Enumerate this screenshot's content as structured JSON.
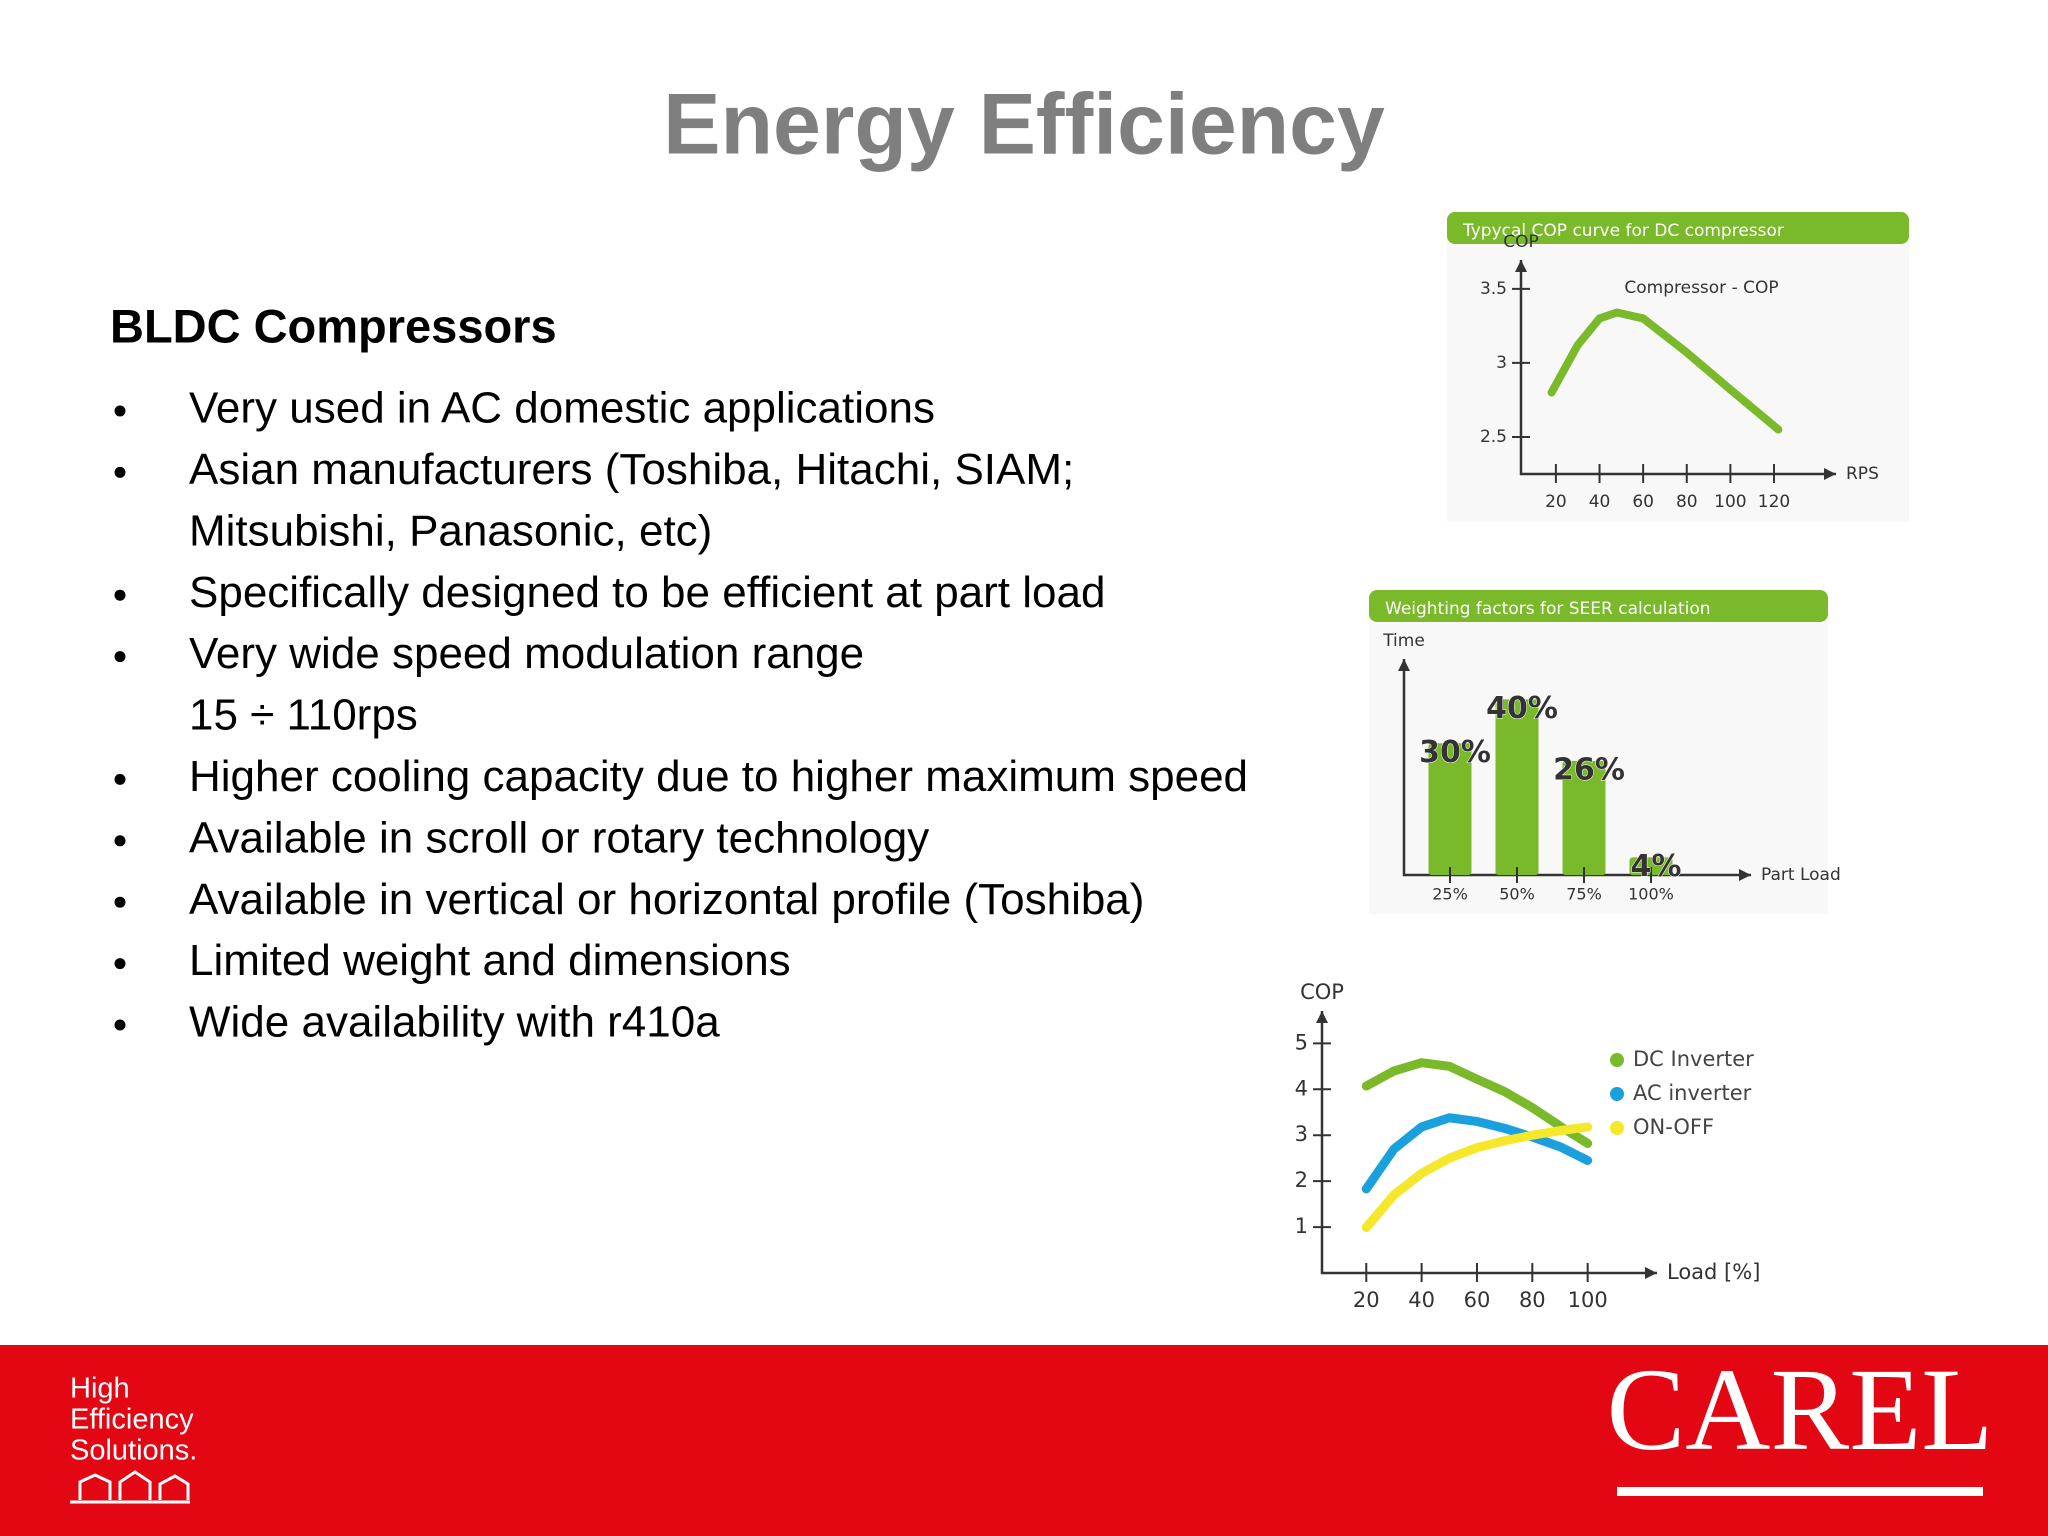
{
  "title": "Energy Efficiency",
  "heading": "BLDC Compressors",
  "bullets": [
    [
      "Very used in AC domestic applications"
    ],
    [
      "Asian manufacturers (Toshiba, Hitachi, SIAM;",
      "Mitsubishi, Panasonic, etc)"
    ],
    [
      "Specifically designed to be efficient at part load"
    ],
    [
      "Very wide speed modulation range",
      "15 ÷ 110rps"
    ],
    [
      "Higher cooling capacity due to higher maximum speed"
    ],
    [
      "Available in scroll or rotary technology"
    ],
    [
      "Available in vertical or horizontal profile (Toshiba)"
    ],
    [
      "Limited weight and dimensions"
    ],
    [
      "Wide availability with r410a"
    ]
  ],
  "footer": {
    "tagline": [
      "High",
      "Efficiency",
      "Solutions."
    ],
    "logo": "CAREL"
  },
  "chart_data": [
    {
      "type": "line",
      "title": "Typycal COP curve for DC compressor",
      "y_label": "COP",
      "x_label": "RPS",
      "x": [
        18,
        30,
        40,
        48,
        60,
        80,
        100,
        122
      ],
      "series": [
        {
          "name": "Compressor - COP",
          "color": "#7ab929",
          "values": [
            2.8,
            3.12,
            3.3,
            3.34,
            3.3,
            3.07,
            2.82,
            2.55
          ]
        }
      ],
      "xlim": [
        4,
        142
      ],
      "ylim": [
        2.25,
        3.6
      ],
      "xticks": [
        20,
        40,
        60,
        80,
        100,
        120
      ],
      "yticks": [
        2.5,
        3,
        3.5
      ],
      "legend": "annotation"
    },
    {
      "type": "bar",
      "title": "Weighting factors for SEER calculation",
      "y_label": "Time",
      "x_label": "Part Load",
      "categories": [
        "25%",
        "50%",
        "75%",
        "100%"
      ],
      "values": [
        30,
        40,
        26,
        4
      ],
      "value_labels": [
        "30%",
        "40%",
        "26%",
        "4%"
      ],
      "color": "#7ab929",
      "ylim": [
        0,
        46
      ]
    },
    {
      "type": "line",
      "y_label": "COP",
      "x_label": "Load [%]",
      "x": [
        20,
        30,
        40,
        50,
        60,
        70,
        80,
        90,
        100
      ],
      "series": [
        {
          "name": "DC Inverter",
          "color": "#7ab929",
          "values": [
            4.07,
            4.4,
            4.58,
            4.5,
            4.22,
            3.95,
            3.6,
            3.2,
            2.82
          ]
        },
        {
          "name": "AC inverter",
          "color": "#1aa0dc",
          "values": [
            1.83,
            2.7,
            3.18,
            3.38,
            3.3,
            3.15,
            2.96,
            2.75,
            2.45
          ]
        },
        {
          "name": "ON-OFF",
          "color": "#f5e82a",
          "values": [
            0.99,
            1.7,
            2.17,
            2.5,
            2.73,
            2.88,
            3.0,
            3.1,
            3.18
          ]
        }
      ],
      "xlim": [
        4,
        120
      ],
      "ylim": [
        0,
        5.4
      ],
      "xticks": [
        20,
        40,
        60,
        80,
        100
      ],
      "yticks": [
        1,
        2,
        3,
        4,
        5
      ],
      "legend": "right"
    }
  ]
}
